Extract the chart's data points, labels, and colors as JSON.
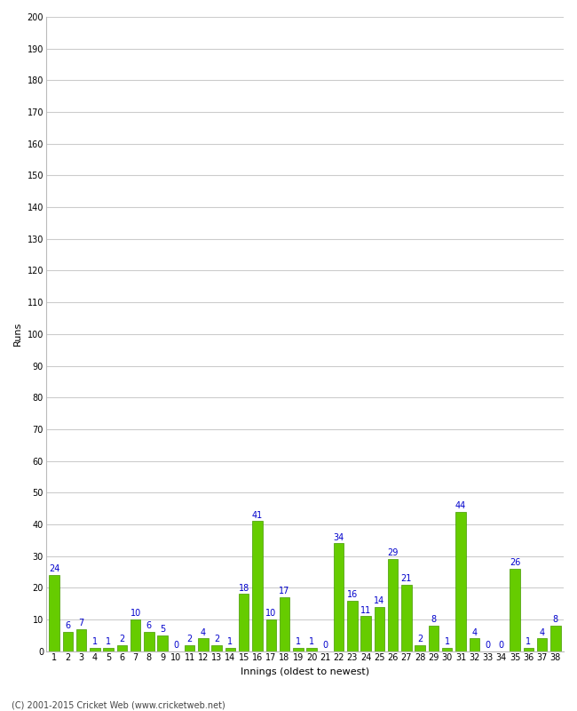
{
  "title": "",
  "xlabel": "Innings (oldest to newest)",
  "ylabel": "Runs",
  "ylim": [
    0,
    200
  ],
  "yticks": [
    0,
    10,
    20,
    30,
    40,
    50,
    60,
    70,
    80,
    90,
    100,
    110,
    120,
    130,
    140,
    150,
    160,
    170,
    180,
    190,
    200
  ],
  "innings": [
    1,
    2,
    3,
    4,
    5,
    6,
    7,
    8,
    9,
    10,
    11,
    12,
    13,
    14,
    15,
    16,
    17,
    18,
    19,
    20,
    21,
    22,
    23,
    24,
    25,
    26,
    27,
    28,
    29,
    30,
    31,
    32,
    33,
    34,
    35,
    36,
    37,
    38
  ],
  "values": [
    24,
    6,
    7,
    1,
    1,
    2,
    10,
    6,
    5,
    0,
    2,
    4,
    2,
    1,
    18,
    41,
    10,
    17,
    1,
    1,
    0,
    34,
    16,
    11,
    14,
    29,
    21,
    2,
    8,
    1,
    44,
    4,
    0,
    0,
    26,
    1,
    4,
    8
  ],
  "bar_color": "#66cc00",
  "bar_edge_color": "#449900",
  "label_color": "#0000cc",
  "background_color": "#ffffff",
  "grid_color": "#cccccc",
  "label_fontsize": 7,
  "tick_fontsize": 7,
  "axis_label_fontsize": 8,
  "copyright": "(C) 2001-2015 Cricket Web (www.cricketweb.net)"
}
